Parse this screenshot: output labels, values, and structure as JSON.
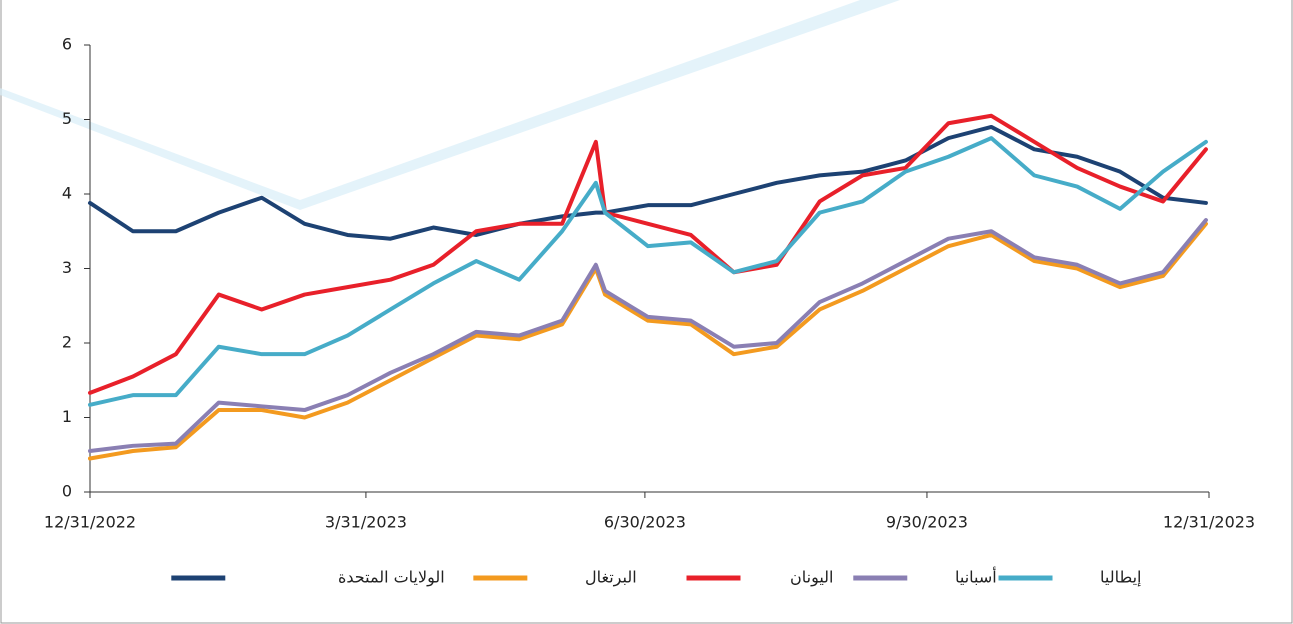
{
  "chart_data": {
    "type": "line",
    "x": [
      "12/31/2022",
      "1/14/2023",
      "1/28/2023",
      "2/11/2023",
      "2/25/2023",
      "3/11/2023",
      "3/25/2023",
      "4/8/2023",
      "4/22/2023",
      "5/6/2023",
      "5/20/2023",
      "6/3/2023",
      "6/14/2023",
      "6/17/2023",
      "7/1/2023",
      "7/15/2023",
      "7/29/2023",
      "8/12/2023",
      "8/26/2023",
      "9/9/2023",
      "9/23/2023",
      "10/7/2023",
      "10/21/2023",
      "11/4/2023",
      "11/18/2023",
      "12/2/2023",
      "12/16/2023",
      "12/30/2023"
    ],
    "series": [
      {
        "name": "إيطاليا",
        "color": "#46acc8",
        "values": [
          1.17,
          1.3,
          1.3,
          1.95,
          1.85,
          1.85,
          2.1,
          2.45,
          2.8,
          3.1,
          2.85,
          3.5,
          4.15,
          3.75,
          3.3,
          3.35,
          2.95,
          3.1,
          3.75,
          3.9,
          4.3,
          4.5,
          4.75,
          4.25,
          4.1,
          3.8,
          4.3,
          4.7
        ]
      },
      {
        "name": "أسبانيا",
        "color": "#8a7fb3",
        "values": [
          0.55,
          0.62,
          0.65,
          1.2,
          1.15,
          1.1,
          1.3,
          1.6,
          1.85,
          2.15,
          2.1,
          2.3,
          3.05,
          2.7,
          2.35,
          2.3,
          1.95,
          2.0,
          2.55,
          2.8,
          3.1,
          3.4,
          3.5,
          3.15,
          3.05,
          2.8,
          2.95,
          3.65
        ]
      },
      {
        "name": "اليونان",
        "color": "#e8202a",
        "values": [
          1.33,
          1.55,
          1.85,
          2.65,
          2.45,
          2.65,
          2.75,
          2.85,
          3.05,
          3.5,
          3.6,
          3.6,
          4.7,
          3.75,
          3.6,
          3.45,
          2.95,
          3.05,
          3.9,
          4.25,
          4.35,
          4.95,
          5.05,
          4.7,
          4.35,
          4.1,
          3.9,
          4.6
        ]
      },
      {
        "name": "البرتغال",
        "color": "#f39a1f",
        "values": [
          0.45,
          0.55,
          0.6,
          1.1,
          1.1,
          1.0,
          1.2,
          1.5,
          1.8,
          2.1,
          2.05,
          2.25,
          3.0,
          2.65,
          2.3,
          2.25,
          1.85,
          1.95,
          2.45,
          2.7,
          3.0,
          3.3,
          3.45,
          3.1,
          3.0,
          2.75,
          2.9,
          3.6
        ]
      },
      {
        "name": "الولايات المتحدة",
        "color": "#1d4273",
        "values": [
          3.88,
          3.5,
          3.5,
          3.75,
          3.95,
          3.6,
          3.45,
          3.4,
          3.55,
          3.45,
          3.6,
          3.7,
          3.75,
          3.75,
          3.85,
          3.85,
          4.0,
          4.15,
          4.25,
          4.3,
          4.45,
          4.75,
          4.9,
          4.6,
          4.5,
          4.3,
          3.95,
          3.88
        ]
      }
    ],
    "xlim": [
      "12/31/2022",
      "12/31/2023"
    ],
    "xticks": [
      "12/31/2022",
      "3/31/2023",
      "6/30/2023",
      "9/30/2023",
      "12/31/2023"
    ],
    "ylim": [
      0,
      6
    ],
    "yticks": [
      0,
      1,
      2,
      3,
      4,
      5,
      6
    ]
  }
}
